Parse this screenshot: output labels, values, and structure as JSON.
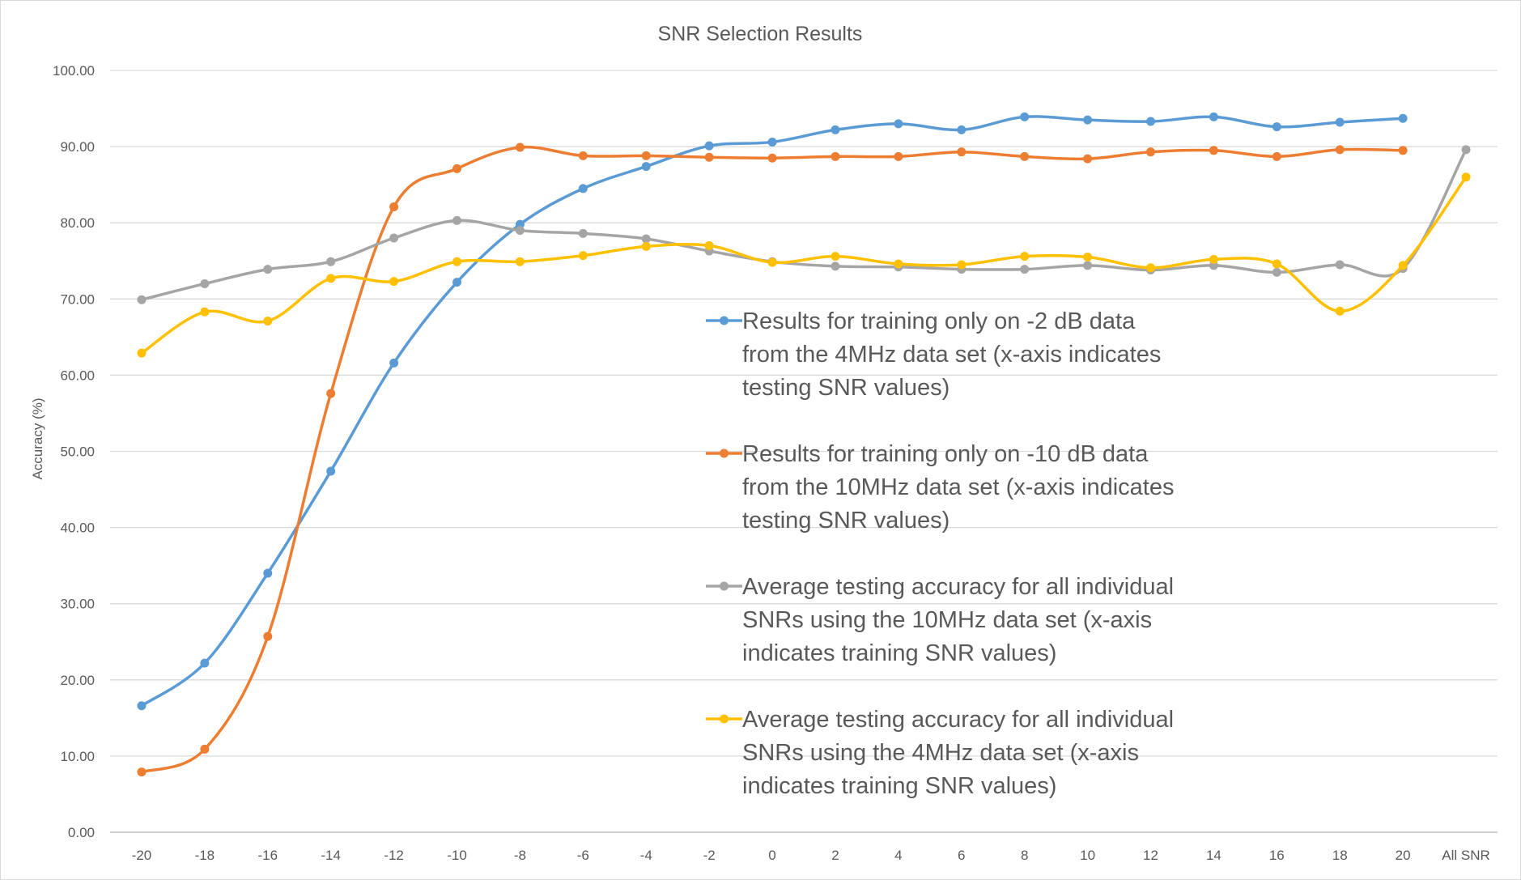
{
  "chart_data": {
    "type": "line",
    "title": "SNR Selection Results",
    "xlabel": "",
    "ylabel": "Accuracy (%)",
    "ylim": [
      0,
      100
    ],
    "y_ticks": [
      "0.00",
      "10.00",
      "20.00",
      "30.00",
      "40.00",
      "50.00",
      "60.00",
      "70.00",
      "80.00",
      "90.00",
      "100.00"
    ],
    "categories": [
      "-20",
      "-18",
      "-16",
      "-14",
      "-12",
      "-10",
      "-8",
      "-6",
      "-4",
      "-2",
      "0",
      "2",
      "4",
      "6",
      "8",
      "10",
      "12",
      "14",
      "16",
      "18",
      "20",
      "All SNR"
    ],
    "grid": true,
    "legend_position": "center-right",
    "series": [
      {
        "name": "Results for training only on -2 dB data from the 4MHz data set (x-axis indicates testing SNR values)",
        "legend_lines": [
          "Results for training only on -2 dB data",
          "from the 4MHz data set (x-axis indicates",
          "testing SNR values)"
        ],
        "color": "#5B9BD5",
        "values": [
          16.6,
          22.2,
          34.0,
          47.4,
          61.6,
          72.2,
          79.8,
          84.5,
          87.4,
          90.1,
          90.6,
          92.2,
          93.0,
          92.2,
          93.9,
          93.5,
          93.3,
          93.9,
          92.6,
          93.2,
          93.7,
          null
        ]
      },
      {
        "name": "Results for training only on -10 dB data from the 10MHz data set (x-axis indicates testing SNR values)",
        "legend_lines": [
          "Results for training only on -10 dB data",
          "from the 10MHz data set (x-axis indicates",
          "testing SNR values)"
        ],
        "color": "#ED7D31",
        "values": [
          7.9,
          10.9,
          25.7,
          57.6,
          82.1,
          87.1,
          89.9,
          88.8,
          88.8,
          88.6,
          88.5,
          88.7,
          88.7,
          89.3,
          88.7,
          88.4,
          89.3,
          89.5,
          88.7,
          89.6,
          89.5,
          null
        ]
      },
      {
        "name": "Average testing accuracy for all individual SNRs using the 10MHz data set (x-axis indicates training SNR values)",
        "legend_lines": [
          "Average testing accuracy for all individual",
          "SNRs using the 10MHz data set (x-axis",
          "indicates training SNR values)"
        ],
        "color": "#A5A5A5",
        "values": [
          69.9,
          72.0,
          73.9,
          74.9,
          78.0,
          80.3,
          79.0,
          78.6,
          77.9,
          76.3,
          74.9,
          74.3,
          74.2,
          73.9,
          73.9,
          74.4,
          73.8,
          74.4,
          73.5,
          74.5,
          74.0,
          89.6
        ]
      },
      {
        "name": "Average testing accuracy for all individual SNRs using the 4MHz data set (x-axis indicates training SNR values)",
        "legend_lines": [
          "Average testing accuracy for all individual",
          "SNRs using the 4MHz data set (x-axis",
          "indicates training SNR values)"
        ],
        "color": "#FFC000",
        "values": [
          62.9,
          68.3,
          67.1,
          72.7,
          72.3,
          74.9,
          74.9,
          75.7,
          76.9,
          77.0,
          74.8,
          75.6,
          74.6,
          74.5,
          75.6,
          75.5,
          74.1,
          75.2,
          74.6,
          68.4,
          74.4,
          86.0
        ]
      }
    ]
  }
}
